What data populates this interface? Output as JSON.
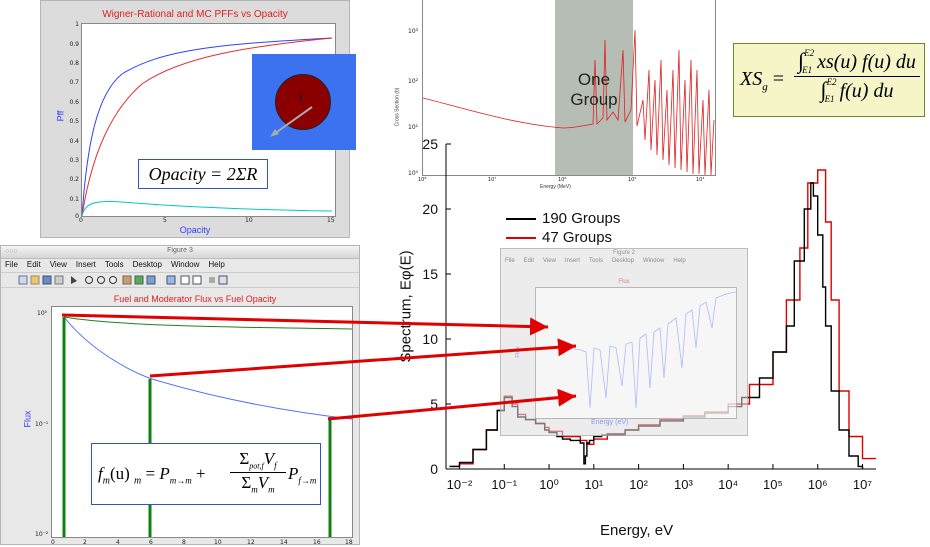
{
  "wigner_plot": {
    "title": "Wigner-Rational and MC PFFs vs Opacity",
    "xlabel": "Opacity",
    "ylabel": "Pff",
    "x_ticks": [
      "0",
      "5",
      "10",
      "15"
    ],
    "y_ticks": [
      "0",
      "0.1",
      "0.2",
      "0.3",
      "0.4",
      "0.5",
      "0.6",
      "0.7",
      "0.8",
      "0.9",
      "1"
    ],
    "inset_label": "f",
    "equation": "Opacity = 2ΣR",
    "colors": {
      "blue": "#3040ff",
      "red": "#e03030",
      "cyan": "#00c8c8",
      "inset_bg": "#3c72f0",
      "fuel": "#8a0000"
    }
  },
  "figure3": {
    "window_title": "Figure 3",
    "menu": [
      "File",
      "Edit",
      "View",
      "Insert",
      "Tools",
      "Desktop",
      "Window",
      "Help"
    ],
    "title": "Fuel and Moderator Flux vs Fuel Opacity",
    "ylabel": "Flux",
    "x_ticks": [
      "0",
      "2",
      "4",
      "6",
      "8",
      "10",
      "12",
      "14",
      "16",
      "18"
    ],
    "y_ticks": [
      "10⁰",
      "10⁻¹",
      "10⁻²"
    ],
    "equation_lhs": "f",
    "equation_sub_m": "m",
    "equation_u": "(u)",
    "equation_P1": "P",
    "equation_sub_mm": "m→m",
    "equation_num": "Σ",
    "equation_num_sub": "pot,f",
    "equation_num_V": "V",
    "equation_num_V_sub": "f",
    "equation_den": "Σ",
    "equation_den_sub": "m",
    "equation_den_V": "V",
    "equation_den_V_sub": "m",
    "equation_P2": "P",
    "equation_sub_fm": "f→m",
    "equation_m": "m"
  },
  "cross_section_plot": {
    "xlabel": "Energy (MeV)",
    "ylabel": "Cross Section (b)",
    "x_ticks": [
      "10⁸",
      "10⁷",
      "10⁶",
      "10⁵",
      "10⁴"
    ],
    "y_ticks": [
      "10³",
      "10²",
      "10¹",
      "10⁰"
    ],
    "band_label_1": "One",
    "band_label_2": "Group"
  },
  "xs_formula": {
    "lhs": "XS",
    "lhs_sub": "g",
    "upper": "E2",
    "lower": "E1",
    "num": "xs(u) f(u) du",
    "den": "f(u) du"
  },
  "flux_figure": {
    "window_title": "Figure 2",
    "menu": [
      "File",
      "Edit",
      "View",
      "Insert",
      "Tools",
      "Desktop",
      "Window",
      "Help"
    ],
    "title": "Flux",
    "ylabel": "Flux",
    "xlabel": "Energy (eV)"
  },
  "chart_data": {
    "type": "line",
    "xlabel": "Energy, eV",
    "ylabel": "Spectrum, Eφ(E)",
    "x_scale": "log",
    "xlim": [
      0.005,
      20000000
    ],
    "ylim": [
      0,
      25
    ],
    "y_ticks": [
      0,
      5,
      10,
      15,
      20,
      25
    ],
    "x_tick_labels": [
      "10⁻²",
      "10⁻¹",
      "10⁰",
      "10¹",
      "10²",
      "10³",
      "10⁴",
      "10⁵",
      "10⁶",
      "10⁷"
    ],
    "legend_placement": "top-left",
    "series": [
      {
        "name": "190 Groups",
        "color": "#000000",
        "x": [
          0.006,
          0.01,
          0.02,
          0.04,
          0.07,
          0.1,
          0.15,
          0.2,
          0.3,
          0.5,
          0.8,
          1,
          1.5,
          2,
          3,
          5,
          6,
          6.5,
          7,
          8,
          10,
          15,
          20,
          50,
          100,
          300,
          1000,
          3000,
          10000,
          20000,
          50000,
          100000,
          200000,
          300000,
          500000,
          700000,
          800000,
          1000000,
          1300000,
          1500000,
          2000000,
          3000000,
          5000000,
          8000000,
          10000000
        ],
        "y": [
          0.2,
          0.5,
          1.5,
          3,
          4.5,
          5.5,
          4.8,
          4,
          3.8,
          3.5,
          3,
          2.8,
          2.5,
          2.3,
          2.2,
          2,
          0.4,
          1,
          2,
          2.2,
          2.5,
          2.6,
          2.7,
          3,
          3.3,
          3.7,
          4,
          4.3,
          4.8,
          5.5,
          7,
          9,
          11,
          16,
          20,
          22,
          21,
          18,
          14,
          11,
          6,
          3,
          1,
          0.2,
          0
        ]
      },
      {
        "name": "47 Groups",
        "color": "#e00000",
        "x": [
          0.006,
          0.01,
          0.02,
          0.04,
          0.07,
          0.1,
          0.15,
          0.2,
          0.3,
          0.5,
          0.8,
          1,
          2,
          5,
          7,
          10,
          20,
          50,
          100,
          300,
          1000,
          3000,
          10000,
          30000,
          100000,
          200000,
          400000,
          600000,
          1000000,
          1500000,
          2000000,
          3000000,
          5000000,
          10000000,
          20000000
        ],
        "y": [
          0.2,
          0.4,
          1.5,
          3,
          4.5,
          5.6,
          5,
          4.2,
          3.8,
          3.5,
          3.2,
          2.9,
          2.5,
          2.2,
          1.9,
          2.3,
          2.6,
          3,
          3.4,
          3.8,
          4.1,
          4.4,
          5,
          6.5,
          9,
          13,
          17,
          22,
          23,
          19,
          13,
          6,
          2.5,
          0.8,
          0.8
        ]
      }
    ]
  }
}
